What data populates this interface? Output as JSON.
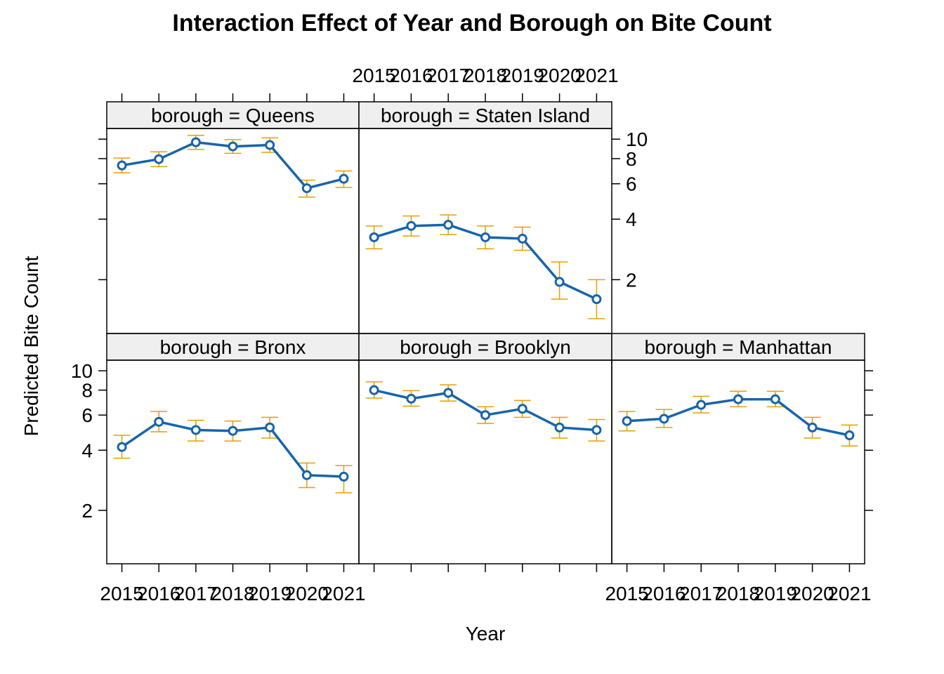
{
  "chart_data": {
    "type": "line",
    "title": "Interaction Effect of Year and Borough on Bite Count",
    "xlabel": "Year",
    "ylabel": "Predicted Bite Count",
    "y_scale": "log",
    "ylim": [
      1.08,
      11.3
    ],
    "x_ticks": [
      "2015",
      "2016",
      "2017",
      "2018",
      "2019",
      "2020",
      "2021"
    ],
    "y_ticks": [
      2,
      4,
      6,
      8,
      10
    ],
    "grid": false,
    "colors": {
      "line": "#1764ab",
      "error_bar": "#e69f00",
      "strip": "#efefef",
      "frame": "#000000"
    },
    "panels": [
      {
        "label": "borough = Bronx",
        "values": [
          4.15,
          5.55,
          5.05,
          5.0,
          5.2,
          3.0,
          2.95
        ],
        "lower": [
          3.65,
          4.95,
          4.45,
          4.45,
          4.6,
          2.6,
          2.45
        ],
        "upper": [
          4.75,
          6.25,
          5.65,
          5.6,
          5.85,
          3.45,
          3.35
        ]
      },
      {
        "label": "borough = Brooklyn",
        "values": [
          8.0,
          7.25,
          7.75,
          6.0,
          6.45,
          5.2,
          5.05
        ],
        "lower": [
          7.3,
          6.65,
          7.05,
          5.45,
          5.85,
          4.6,
          4.45
        ],
        "upper": [
          8.8,
          7.95,
          8.5,
          6.6,
          7.1,
          5.85,
          5.7
        ]
      },
      {
        "label": "borough = Manhattan",
        "values": [
          5.6,
          5.75,
          6.75,
          7.2,
          7.2,
          5.2,
          4.75
        ],
        "lower": [
          5.0,
          5.2,
          6.15,
          6.6,
          6.6,
          4.6,
          4.2
        ],
        "upper": [
          6.25,
          6.4,
          7.45,
          7.9,
          7.9,
          5.85,
          5.35
        ]
      },
      {
        "label": "borough = Queens",
        "values": [
          7.4,
          7.95,
          9.65,
          9.2,
          9.35,
          5.7,
          6.35
        ],
        "lower": [
          6.8,
          7.3,
          8.9,
          8.5,
          8.6,
          5.15,
          5.75
        ],
        "upper": [
          8.05,
          8.65,
          10.45,
          9.95,
          10.15,
          6.25,
          6.95
        ]
      },
      {
        "label": "borough = Staten Island",
        "values": [
          3.25,
          3.7,
          3.75,
          3.25,
          3.2,
          1.95,
          1.6
        ],
        "lower": [
          2.85,
          3.3,
          3.35,
          2.85,
          2.8,
          1.6,
          1.28
        ],
        "upper": [
          3.7,
          4.15,
          4.2,
          3.7,
          3.65,
          2.45,
          2.0
        ]
      }
    ]
  }
}
